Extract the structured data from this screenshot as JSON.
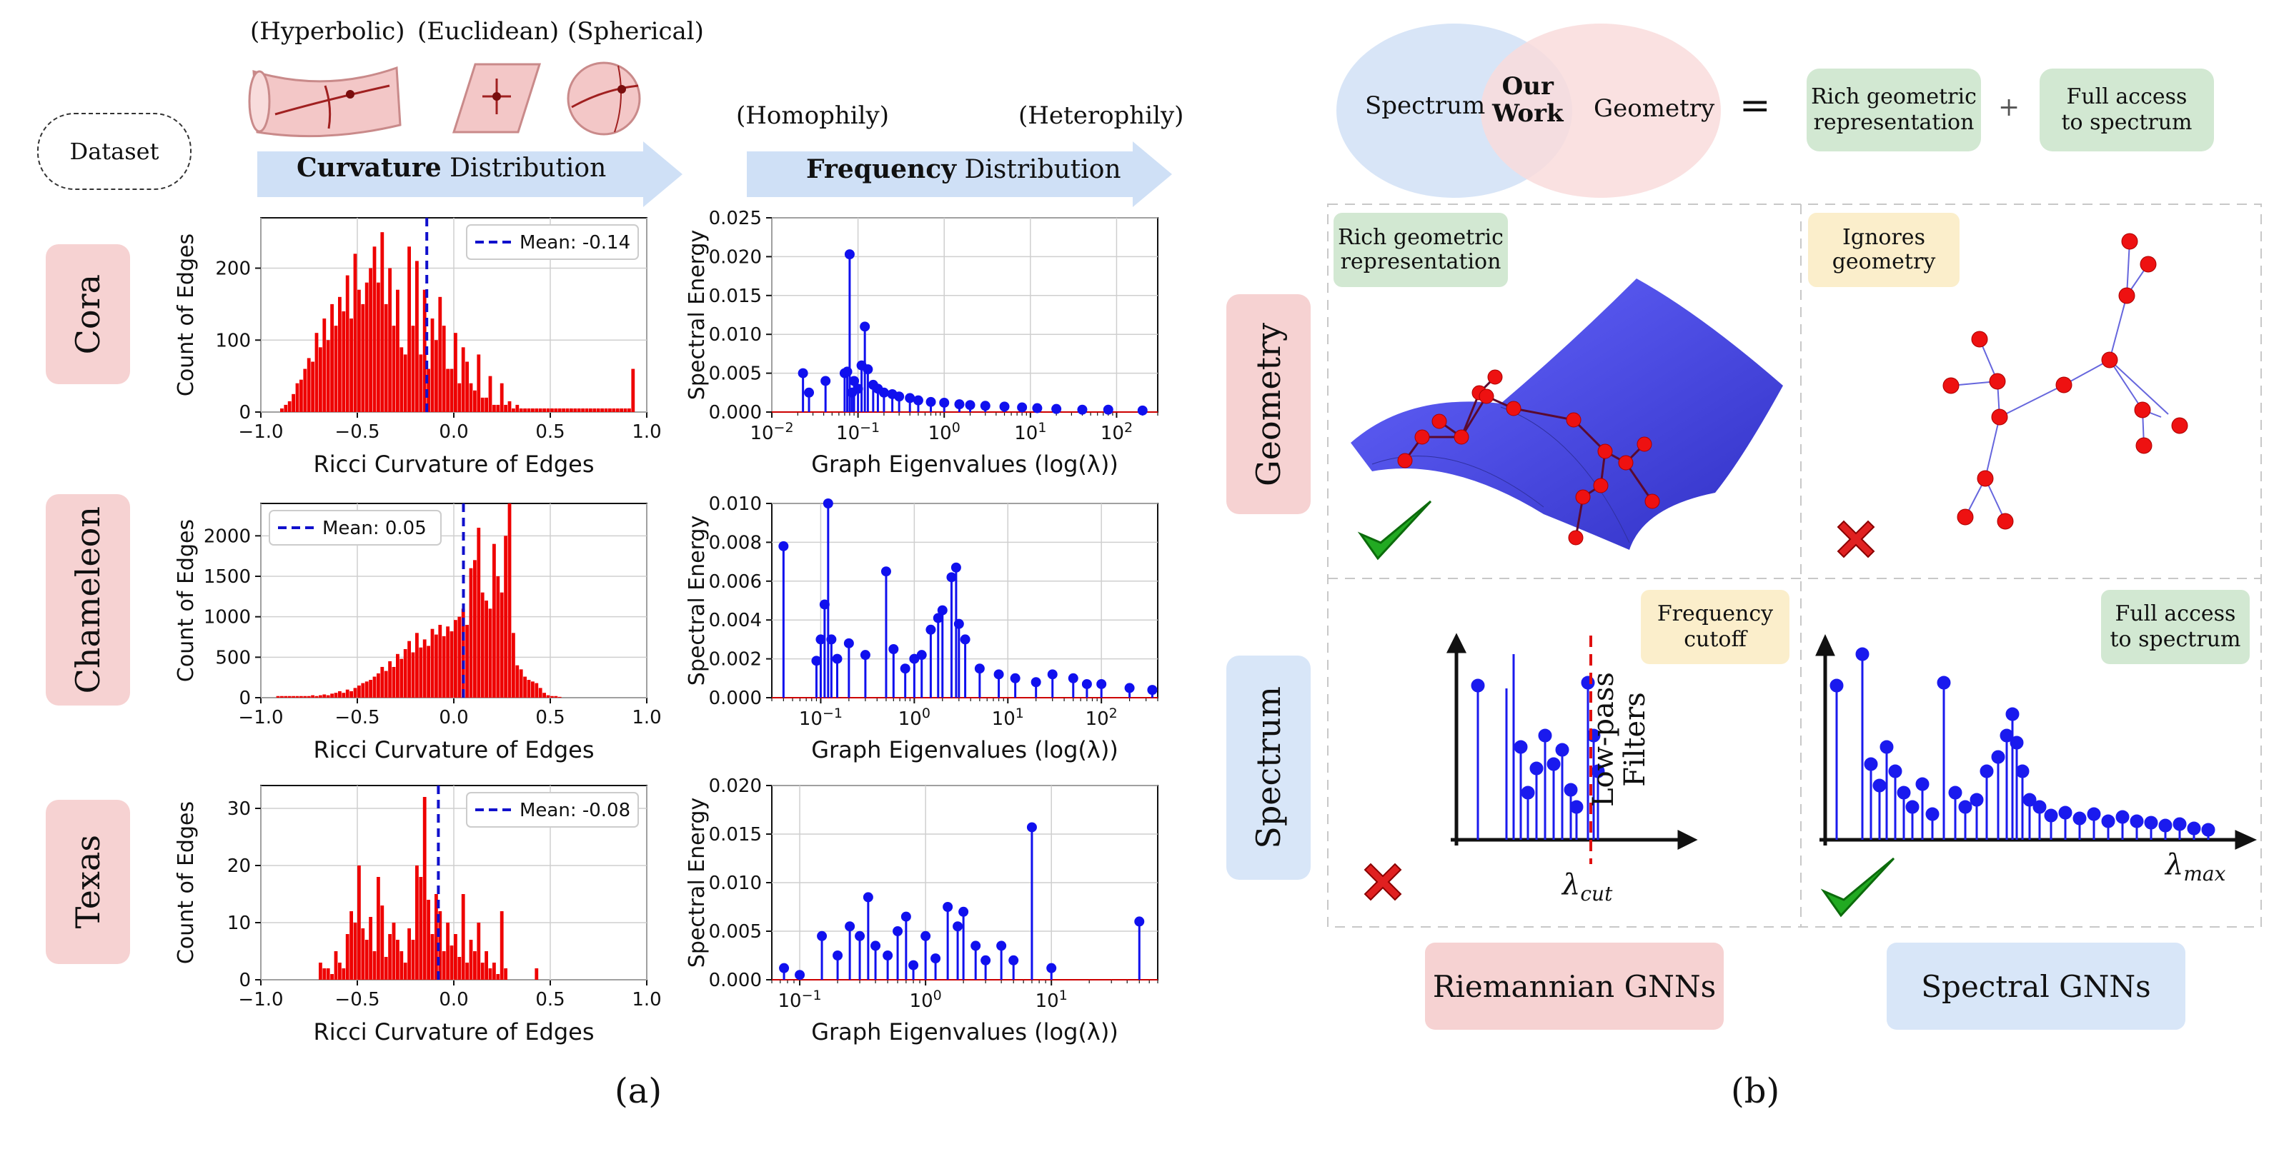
{
  "panel_a": {
    "geom_types": [
      "(Hyperbolic)",
      "(Euclidean)",
      "(Spherical)"
    ],
    "freq_ends": [
      "(Homophily)",
      "(Heterophily)"
    ],
    "dataset_label": "Dataset",
    "curv_arrow": {
      "bold": "Curvature",
      "rest": " Distribution"
    },
    "freq_arrow": {
      "bold": "Frequency",
      "rest": " Distribution"
    },
    "datasets": [
      "Cora",
      "Chameleon",
      "Texas"
    ],
    "caption": "(a)"
  },
  "panel_b": {
    "venn": {
      "left": "Spectrum",
      "center_1": "Our",
      "center_2": "Work",
      "right": "Geometry"
    },
    "equals": "=",
    "plus": "+",
    "box_rich_1": "Rich geometric",
    "box_rich_2": "representation",
    "box_full_1": "Full access",
    "box_full_2": "to spectrum",
    "row_geometry": "Geometry",
    "row_spectrum": "Spectrum",
    "cell_rich_1": "Rich geometric",
    "cell_rich_2": "representation",
    "cell_ignores_1": "Ignores",
    "cell_ignores_2": "geometry",
    "cell_freq_1": "Frequency",
    "cell_freq_2": "cutoff",
    "cell_full_1": "Full access",
    "cell_full_2": "to spectrum",
    "lowpass_1": "Low-pass",
    "lowpass_2": "Filters",
    "lambda_cut": "λ",
    "lambda_cut_sub": "cut",
    "lambda_max": "λ",
    "lambda_max_sub": "max",
    "riemannian": "Riemannian GNNs",
    "spectral": "Spectral GNNs",
    "caption": "(b)"
  },
  "chart_data": [
    {
      "type": "bar",
      "id": "cora-curv",
      "title": "",
      "xlabel": "Ricci Curvature of Edges",
      "ylabel": "Count of Edges",
      "xlim": [
        -1.0,
        1.0
      ],
      "ylim": [
        0,
        270
      ],
      "xticks": [
        -1.0,
        -0.5,
        0.0,
        0.5,
        1.0
      ],
      "xtick_labels": [
        "−1.0",
        "−0.5",
        "0.0",
        "0.5",
        "1.0"
      ],
      "yticks": [
        0,
        100,
        200
      ],
      "ytick_labels": [
        "0",
        "100",
        "200"
      ],
      "legend": "Mean: -0.14",
      "legend_pos": "top-right",
      "mean": -0.14,
      "bin_start": -0.9,
      "bin_width": 0.02,
      "values": [
        5,
        10,
        15,
        25,
        40,
        45,
        60,
        75,
        70,
        110,
        90,
        130,
        100,
        150,
        120,
        160,
        140,
        190,
        130,
        220,
        170,
        150,
        180,
        200,
        230,
        180,
        250,
        150,
        200,
        120,
        170,
        90,
        80,
        230,
        120,
        210,
        80,
        170,
        60,
        130,
        100,
        160,
        120,
        60,
        60,
        110,
        40,
        90,
        70,
        40,
        30,
        80,
        20,
        20,
        50,
        10,
        10,
        40,
        10,
        15,
        5,
        10,
        5,
        5,
        5,
        5,
        5,
        5,
        5,
        5,
        5,
        5,
        5,
        5,
        5,
        5,
        5,
        5,
        5,
        5,
        5,
        5,
        5,
        5,
        5,
        5,
        5,
        5,
        5,
        5,
        5,
        60
      ]
    },
    {
      "type": "stem",
      "id": "cora-spec",
      "xlabel": "Graph Eigenvalues (log(λ))",
      "ylabel": "Spectral Energy",
      "xscale": "log",
      "xlim": [
        0.01,
        300
      ],
      "ylim": [
        0,
        0.025
      ],
      "yticks": [
        0,
        0.005,
        0.01,
        0.015,
        0.02,
        0.025
      ],
      "ytick_labels": [
        "0.000",
        "0.005",
        "0.010",
        "0.015",
        "0.020",
        "0.025"
      ],
      "xtick_labels": [
        "10−2",
        "10−1",
        "100",
        "101",
        "102"
      ],
      "x": [
        0.023,
        0.027,
        0.042,
        0.07,
        0.075,
        0.08,
        0.085,
        0.09,
        0.1,
        0.11,
        0.12,
        0.13,
        0.15,
        0.17,
        0.2,
        0.25,
        0.3,
        0.4,
        0.5,
        0.7,
        1,
        1.5,
        2,
        3,
        5,
        8,
        12,
        20,
        40,
        80,
        200
      ],
      "values": [
        0.005,
        0.0025,
        0.004,
        0.005,
        0.0052,
        0.0203,
        0.0025,
        0.004,
        0.003,
        0.006,
        0.011,
        0.0055,
        0.0035,
        0.003,
        0.0025,
        0.0023,
        0.002,
        0.0018,
        0.0015,
        0.0013,
        0.0012,
        0.001,
        0.0009,
        0.0008,
        0.0007,
        0.0006,
        0.0005,
        0.0004,
        0.0003,
        0.0003,
        0.0002
      ]
    },
    {
      "type": "bar",
      "id": "chameleon-curv",
      "xlabel": "Ricci Curvature of Edges",
      "ylabel": "Count of Edges",
      "xlim": [
        -1.0,
        1.0
      ],
      "ylim": [
        0,
        2400
      ],
      "xticks": [
        -1.0,
        -0.5,
        0.0,
        0.5,
        1.0
      ],
      "xtick_labels": [
        "−1.0",
        "−0.5",
        "0.0",
        "0.5",
        "1.0"
      ],
      "yticks": [
        0,
        500,
        1000,
        1500,
        2000
      ],
      "ytick_labels": [
        "0",
        "500",
        "1000",
        "1500",
        "2000"
      ],
      "legend": "Mean: 0.05",
      "legend_pos": "top-left",
      "mean": 0.05,
      "bin_start": -0.92,
      "bin_width": 0.02,
      "values": [
        20,
        20,
        20,
        20,
        20,
        20,
        20,
        20,
        20,
        30,
        20,
        30,
        40,
        30,
        50,
        60,
        80,
        60,
        100,
        80,
        120,
        150,
        180,
        200,
        220,
        260,
        300,
        380,
        330,
        450,
        380,
        540,
        480,
        600,
        700,
        560,
        800,
        620,
        720,
        640,
        850,
        780,
        900,
        760,
        880,
        820,
        960,
        1000,
        1100,
        900,
        1600,
        1700,
        2100,
        1300,
        1200,
        1100,
        1900,
        1500,
        1300,
        2000,
        2400,
        800,
        400,
        350,
        260,
        220,
        200,
        180,
        120,
        60,
        30,
        20,
        20,
        10
      ]
    },
    {
      "type": "stem",
      "id": "chameleon-spec",
      "xlabel": "Graph Eigenvalues (log(λ))",
      "ylabel": "Spectral Energy",
      "xscale": "log",
      "xlim": [
        0.03,
        400
      ],
      "ylim": [
        0,
        0.01
      ],
      "yticks": [
        0,
        0.002,
        0.004,
        0.006,
        0.008,
        0.01
      ],
      "ytick_labels": [
        "0.000",
        "0.002",
        "0.004",
        "0.006",
        "0.008",
        "0.010"
      ],
      "xtick_labels": [
        "10−1",
        "100",
        "101",
        "102"
      ],
      "x": [
        0.04,
        0.09,
        0.1,
        0.11,
        0.12,
        0.13,
        0.15,
        0.2,
        0.3,
        0.5,
        0.6,
        0.8,
        1,
        1.2,
        1.5,
        1.8,
        2,
        2.5,
        2.8,
        3,
        3.5,
        5,
        8,
        12,
        20,
        30,
        50,
        70,
        100,
        200,
        350
      ],
      "values": [
        0.0078,
        0.0019,
        0.003,
        0.0048,
        0.0105,
        0.003,
        0.002,
        0.0028,
        0.0022,
        0.0065,
        0.0025,
        0.0015,
        0.002,
        0.0022,
        0.0035,
        0.0041,
        0.0045,
        0.0062,
        0.0067,
        0.0038,
        0.003,
        0.0015,
        0.0012,
        0.001,
        0.0008,
        0.0012,
        0.001,
        0.0007,
        0.0007,
        0.0005,
        0.0004
      ]
    },
    {
      "type": "bar",
      "id": "texas-curv",
      "xlabel": "Ricci Curvature of Edges",
      "ylabel": "Count of Edges",
      "xlim": [
        -1.0,
        1.0
      ],
      "ylim": [
        0,
        34
      ],
      "xticks": [
        -1.0,
        -0.5,
        0.0,
        0.5,
        1.0
      ],
      "xtick_labels": [
        "−1.0",
        "−0.5",
        "0.0",
        "0.5",
        "1.0"
      ],
      "yticks": [
        0,
        10,
        20,
        30
      ],
      "ytick_labels": [
        "0",
        "10",
        "20",
        "30"
      ],
      "legend": "Mean: -0.08",
      "legend_pos": "top-right",
      "mean": -0.08,
      "bin_start": -0.7,
      "bin_width": 0.02,
      "values": [
        3,
        2,
        2,
        1,
        5,
        3,
        2,
        8,
        12,
        10,
        20,
        9,
        7,
        11,
        5,
        18,
        13,
        4,
        8,
        10,
        7,
        5,
        3,
        9,
        7,
        20,
        18,
        32,
        14,
        8,
        15,
        12,
        5,
        10,
        6,
        8,
        4,
        15,
        3,
        7,
        5,
        10,
        3,
        5,
        2,
        3,
        1,
        12,
        2,
        0,
        0,
        0,
        0,
        0,
        0,
        0,
        2
      ]
    },
    {
      "type": "stem",
      "id": "texas-spec",
      "xlabel": "Graph Eigenvalues (log(λ))",
      "ylabel": "Spectral Energy",
      "xscale": "log",
      "xlim": [
        0.06,
        70
      ],
      "ylim": [
        0,
        0.02
      ],
      "yticks": [
        0,
        0.005,
        0.01,
        0.015,
        0.02
      ],
      "ytick_labels": [
        "0.000",
        "0.005",
        "0.010",
        "0.015",
        "0.020"
      ],
      "xtick_labels": [
        "10−1",
        "100",
        "101"
      ],
      "x": [
        0.075,
        0.1,
        0.15,
        0.2,
        0.25,
        0.3,
        0.35,
        0.4,
        0.5,
        0.6,
        0.7,
        0.8,
        1,
        1.2,
        1.5,
        1.8,
        2,
        2.5,
        3,
        4,
        5,
        7,
        10,
        50
      ],
      "values": [
        0.0012,
        0.0005,
        0.0045,
        0.0025,
        0.0055,
        0.0045,
        0.0085,
        0.0035,
        0.0025,
        0.005,
        0.0065,
        0.0015,
        0.0045,
        0.0022,
        0.0075,
        0.0055,
        0.007,
        0.0035,
        0.002,
        0.0035,
        0.002,
        0.0157,
        0.0012,
        0.006
      ]
    }
  ]
}
